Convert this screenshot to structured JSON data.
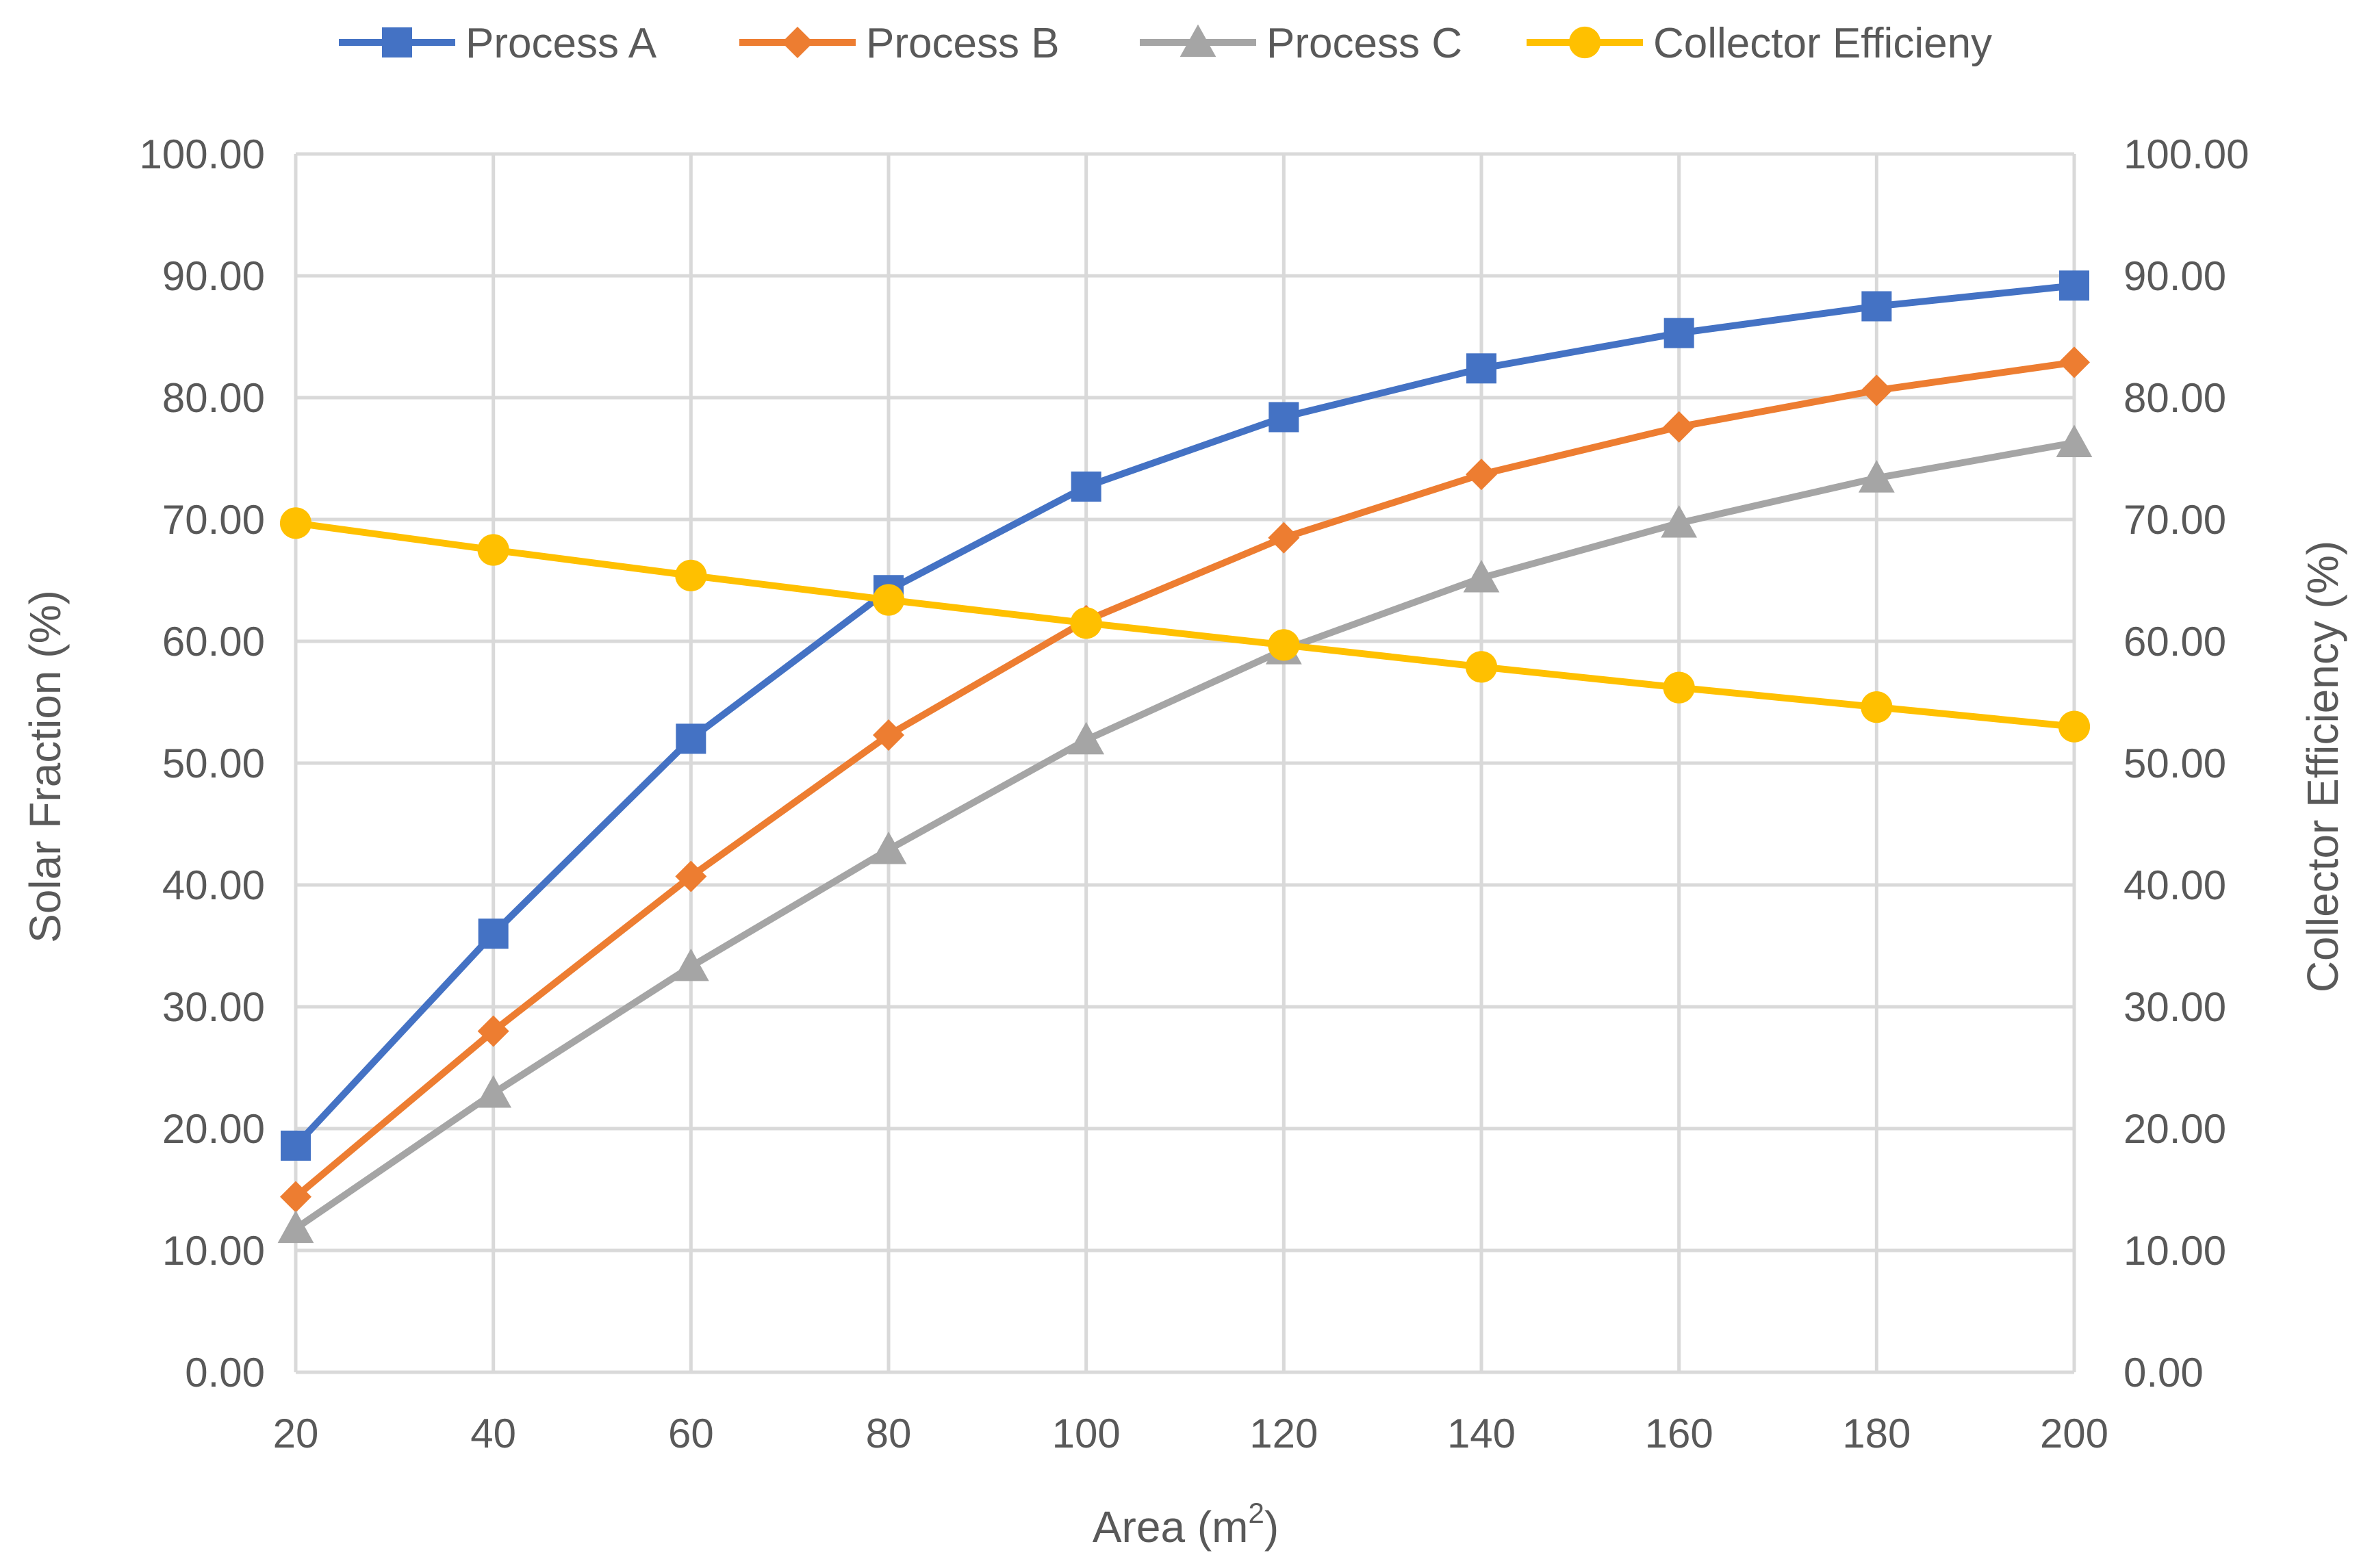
{
  "chart_data": {
    "type": "line",
    "title": "",
    "x": [
      20,
      40,
      60,
      80,
      100,
      120,
      140,
      160,
      180,
      200
    ],
    "x_tick_labels": [
      "20",
      "40",
      "60",
      "80",
      "100",
      "120",
      "140",
      "160",
      "180",
      "200"
    ],
    "xlabel": "Area (m",
    "xlabel_superscript": "2",
    "xlabel_suffix": ")",
    "ylabel": "Solar Fraction (%)",
    "y2label": "Collector Efficiency (%)",
    "ylim": [
      0,
      100
    ],
    "y2lim": [
      0,
      100
    ],
    "y_tick_labels": [
      "0.00",
      "10.00",
      "20.00",
      "30.00",
      "40.00",
      "50.00",
      "60.00",
      "70.00",
      "80.00",
      "90.00",
      "100.00"
    ],
    "y2_tick_labels": [
      "0.00",
      "10.00",
      "20.00",
      "30.00",
      "40.00",
      "50.00",
      "60.00",
      "70.00",
      "80.00",
      "90.00",
      "100.00"
    ],
    "grid": true,
    "legend_position": "top",
    "series": [
      {
        "name": "Process A",
        "axis": "left",
        "marker": "square",
        "color": "#4472C4",
        "values": [
          18.6,
          36.0,
          52.0,
          64.2,
          72.7,
          78.4,
          82.4,
          85.3,
          87.5,
          89.2
        ]
      },
      {
        "name": "Process B",
        "axis": "left",
        "marker": "diamond",
        "color": "#ED7D31",
        "values": [
          14.4,
          28.0,
          40.7,
          52.3,
          61.7,
          68.5,
          73.7,
          77.6,
          80.6,
          82.9
        ]
      },
      {
        "name": "Process C",
        "axis": "left",
        "marker": "triangle",
        "color": "#A5A5A5",
        "values": [
          11.8,
          22.9,
          33.3,
          42.9,
          51.9,
          59.3,
          65.2,
          69.7,
          73.4,
          76.3
        ]
      },
      {
        "name": "Collector Efficieny",
        "axis": "right",
        "marker": "circle",
        "color": "#FFC000",
        "values": [
          69.7,
          67.5,
          65.4,
          63.4,
          61.5,
          59.7,
          57.9,
          56.2,
          54.6,
          53.0
        ]
      }
    ]
  },
  "colors": {
    "grid": "#D9D9D9",
    "text": "#595959"
  }
}
